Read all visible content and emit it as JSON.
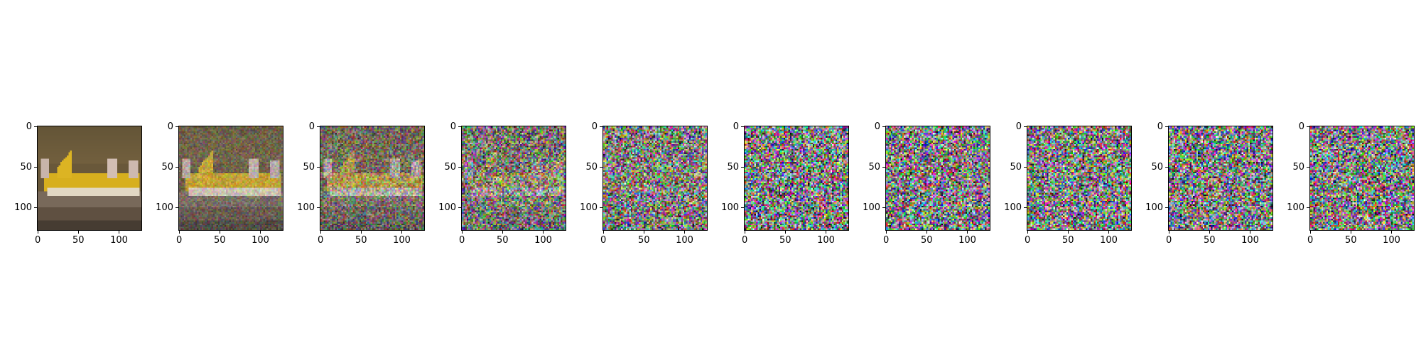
{
  "figure": {
    "panel_count": 10,
    "noise_levels": [
      0.0,
      0.25,
      0.5,
      0.75,
      0.9,
      1.0,
      1.0,
      1.0,
      1.0,
      1.0
    ],
    "y_ticks": [
      "0",
      "50",
      "100"
    ],
    "x_ticks": [
      "0",
      "50",
      "100"
    ],
    "image_description_colors": {
      "sky": "#6b5a3a",
      "plane_body": "#d9b21c",
      "tarmac": "#7a6a58",
      "foreground": "#5a4a3a"
    }
  }
}
